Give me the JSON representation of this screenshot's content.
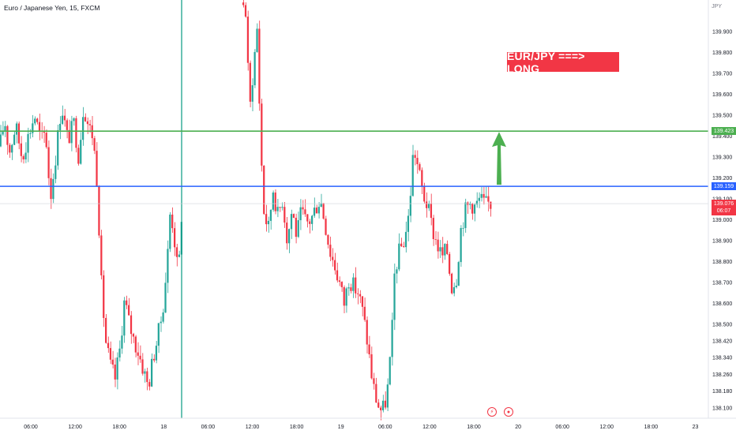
{
  "header": {
    "symbol": "Euro / Japanese Yen, 15, FXCM"
  },
  "currency_label": "JPY",
  "annotation": {
    "text": "EUR/JPY ===> LONG"
  },
  "colors": {
    "up": "#26a69a",
    "down": "#f23645",
    "target_line": "#4caf50",
    "entry_line": "#2962ff",
    "vertical_marker": "#089981",
    "arrow": "#4caf50"
  },
  "price_badges": {
    "target": "139.423",
    "entry": "139.159",
    "last": "139.076",
    "countdown": "06:07"
  },
  "icons": [
    "lightning-icon",
    "record-icon"
  ],
  "chart_data": {
    "type": "candlestick",
    "title": "Euro / Japanese Yen, 15, FXCM",
    "ylim": [
      138.05,
      140.05
    ],
    "y_ticks": [
      139.9,
      139.8,
      139.7,
      139.6,
      139.5,
      139.4,
      139.3,
      139.2,
      139.1,
      139.0,
      138.9,
      138.8,
      138.7,
      138.6,
      138.5,
      138.42,
      138.34,
      138.26,
      138.18,
      138.1
    ],
    "x_ticks": [
      "06:00",
      "12:00",
      "18:00",
      "18",
      "06:00",
      "12:00",
      "18:00",
      "19",
      "06:00",
      "12:00",
      "18:00",
      "20",
      "06:00",
      "12:00",
      "18:00",
      "23"
    ],
    "horizontal_lines": [
      {
        "label": "target",
        "price": 139.423
      },
      {
        "label": "entry",
        "price": 139.159
      }
    ],
    "last_price": 139.076,
    "path": [
      [
        0,
        139.35
      ],
      [
        6,
        139.48
      ],
      [
        12,
        139.32
      ],
      [
        20,
        139.45
      ],
      [
        28,
        139.3
      ],
      [
        36,
        139.4
      ],
      [
        44,
        139.5
      ],
      [
        52,
        139.38
      ],
      [
        58,
        139.42
      ],
      [
        64,
        139.1
      ],
      [
        70,
        139.28
      ],
      [
        78,
        139.55
      ],
      [
        86,
        139.38
      ],
      [
        94,
        139.46
      ],
      [
        100,
        139.3
      ],
      [
        106,
        139.55
      ],
      [
        112,
        139.45
      ],
      [
        118,
        139.4
      ],
      [
        124,
        139.15
      ],
      [
        128,
        138.72
      ],
      [
        134,
        138.42
      ],
      [
        140,
        138.3
      ],
      [
        146,
        138.24
      ],
      [
        152,
        138.38
      ],
      [
        158,
        138.62
      ],
      [
        164,
        138.5
      ],
      [
        170,
        138.42
      ],
      [
        176,
        138.36
      ],
      [
        182,
        138.28
      ],
      [
        188,
        138.2
      ],
      [
        194,
        138.34
      ],
      [
        200,
        138.44
      ],
      [
        206,
        138.56
      ],
      [
        212,
        138.8
      ],
      [
        216,
        139.05
      ],
      [
        220,
        138.95
      ],
      [
        226,
        138.72
      ],
      [
        230,
        139.02
      ],
      [
        232,
        139.01
      ],
      [
        306,
        140.05
      ],
      [
        312,
        139.98
      ],
      [
        316,
        139.5
      ],
      [
        320,
        139.68
      ],
      [
        326,
        139.92
      ],
      [
        330,
        139.4
      ],
      [
        334,
        139.05
      ],
      [
        340,
        138.95
      ],
      [
        346,
        139.15
      ],
      [
        352,
        139.02
      ],
      [
        358,
        139.1
      ],
      [
        364,
        138.9
      ],
      [
        370,
        139.05
      ],
      [
        376,
        138.92
      ],
      [
        382,
        139.04
      ],
      [
        388,
        138.98
      ],
      [
        394,
        139.0
      ],
      [
        400,
        139.06
      ],
      [
        406,
        139.1
      ],
      [
        412,
        138.98
      ],
      [
        418,
        138.85
      ],
      [
        424,
        138.78
      ],
      [
        430,
        138.7
      ],
      [
        436,
        138.6
      ],
      [
        442,
        138.72
      ],
      [
        448,
        138.68
      ],
      [
        454,
        138.65
      ],
      [
        460,
        138.55
      ],
      [
        466,
        138.4
      ],
      [
        472,
        138.22
      ],
      [
        478,
        138.12
      ],
      [
        484,
        138.08
      ],
      [
        490,
        138.15
      ],
      [
        496,
        138.4
      ],
      [
        500,
        138.75
      ],
      [
        506,
        138.85
      ],
      [
        512,
        138.9
      ],
      [
        518,
        139.02
      ],
      [
        524,
        139.35
      ],
      [
        530,
        139.24
      ],
      [
        536,
        139.12
      ],
      [
        542,
        139.06
      ],
      [
        548,
        138.95
      ],
      [
        554,
        138.88
      ],
      [
        560,
        138.82
      ],
      [
        566,
        138.86
      ],
      [
        572,
        138.68
      ],
      [
        578,
        138.72
      ],
      [
        584,
        138.96
      ],
      [
        590,
        139.05
      ],
      [
        596,
        139.08
      ],
      [
        602,
        139.06
      ],
      [
        608,
        139.1
      ],
      [
        614,
        139.07
      ],
      [
        620,
        139.08
      ],
      [
        622,
        139.076
      ]
    ]
  }
}
